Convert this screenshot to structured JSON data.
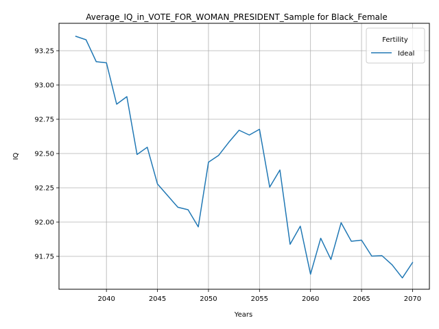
{
  "chart_data": {
    "type": "line",
    "title": "Average_IQ_in_VOTE_FOR_WOMAN_PRESIDENT_Sample for Black_Female",
    "xlabel": "Years",
    "ylabel": "IQ",
    "xlim": [
      2035.35,
      2071.65
    ],
    "ylim": [
      91.51,
      93.45
    ],
    "xticks": [
      2040,
      2045,
      2050,
      2055,
      2060,
      2065,
      2070
    ],
    "yticks": [
      91.75,
      92.0,
      92.25,
      92.5,
      92.75,
      93.0,
      93.25
    ],
    "grid": true,
    "legend": {
      "title": "Fertility",
      "position": "top-right"
    },
    "series": [
      {
        "name": "Ideal",
        "color": "#1f77b4",
        "x": [
          2037,
          2038,
          2039,
          2040,
          2041,
          2042,
          2043,
          2044,
          2045,
          2046,
          2047,
          2048,
          2049,
          2050,
          2051,
          2052,
          2053,
          2054,
          2055,
          2056,
          2057,
          2058,
          2059,
          2060,
          2061,
          2062,
          2063,
          2064,
          2065,
          2066,
          2067,
          2068,
          2069,
          2070
        ],
        "values": [
          93.355,
          93.33,
          93.17,
          93.162,
          92.86,
          92.915,
          92.493,
          92.546,
          92.278,
          92.193,
          92.108,
          92.09,
          91.965,
          92.437,
          92.487,
          92.583,
          92.67,
          92.635,
          92.677,
          92.255,
          92.38,
          91.838,
          91.97,
          91.62,
          91.882,
          91.727,
          91.995,
          91.86,
          91.868,
          91.752,
          91.755,
          91.688,
          91.593,
          91.705
        ]
      }
    ]
  }
}
